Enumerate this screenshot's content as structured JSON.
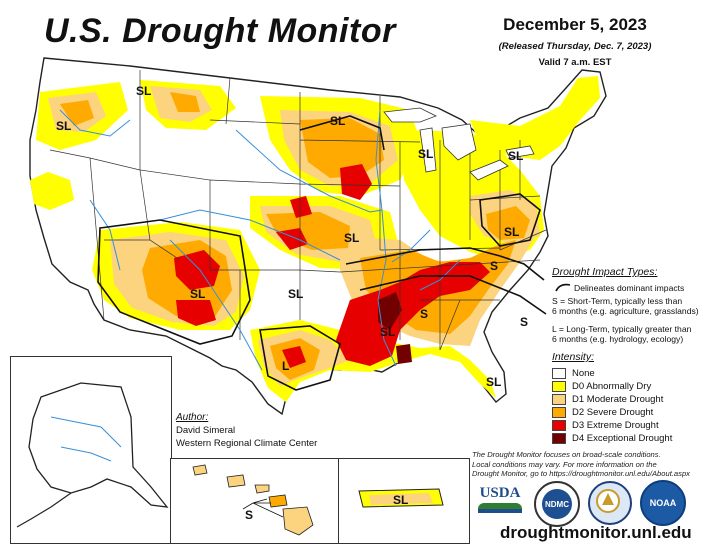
{
  "header": {
    "title": "U.S. Drought Monitor",
    "date": "December 5, 2023",
    "released": "(Released Thursday, Dec. 7, 2023)",
    "valid": "Valid 7 a.m. EST"
  },
  "impact_legend": {
    "title": "Drought Impact Types:",
    "delineates": "Delineates dominant impacts",
    "s_line1": "S = Short-Term, typically less than",
    "s_line2": "6 months (e.g. agriculture, grasslands)",
    "l_line1": "L = Long-Term, typically greater than",
    "l_line2": "6 months (e.g. hydrology, ecology)"
  },
  "intensity_legend": {
    "title": "Intensity:",
    "items": [
      {
        "label": "None",
        "color": "#ffffff"
      },
      {
        "label": "D0 Abnormally Dry",
        "color": "#ffff00"
      },
      {
        "label": "D1 Moderate Drought",
        "color": "#fcd37f"
      },
      {
        "label": "D2 Severe Drought",
        "color": "#ffaa00"
      },
      {
        "label": "D3 Extreme Drought",
        "color": "#e60000"
      },
      {
        "label": "D4 Exceptional Drought",
        "color": "#730000"
      }
    ]
  },
  "author": {
    "title": "Author:",
    "name": "David Simeral",
    "org": "Western Regional Climate Center"
  },
  "note": {
    "line1": "The Drought Monitor focuses on broad-scale conditions.",
    "line2": "Local conditions may vary. For more information on the",
    "line3": "Drought Monitor, go to https://droughtmonitor.unl.edu/About.aspx"
  },
  "map_labels": {
    "sl": "SL",
    "s": "S",
    "l": "L"
  },
  "logos": {
    "usda": "USDA",
    "ndmc": "NDMC",
    "noaa": "NOAA"
  },
  "footer": {
    "url": "droughtmonitor.unl.edu"
  }
}
